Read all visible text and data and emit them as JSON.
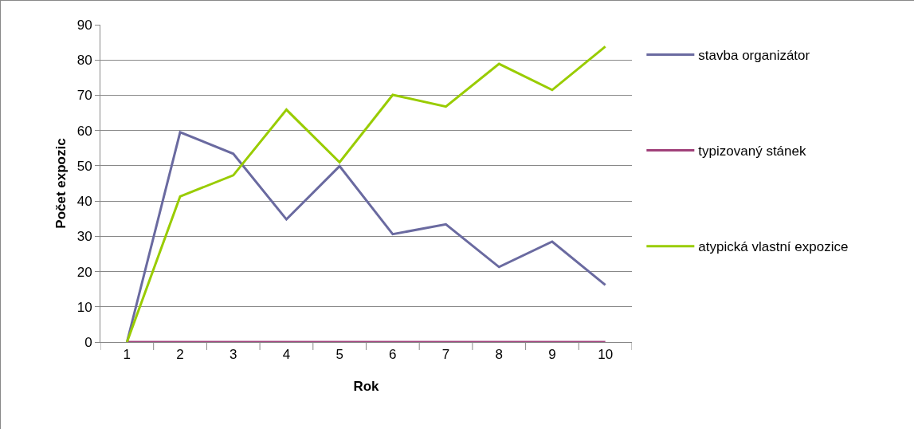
{
  "chart_data": {
    "type": "line",
    "xlabel": "Rok",
    "ylabel": "Počet expozic",
    "categories": [
      "1",
      "2",
      "3",
      "4",
      "5",
      "6",
      "7",
      "8",
      "9",
      "10"
    ],
    "series": [
      {
        "name": "stavba organizátor",
        "color": "#6a6aa0",
        "values": [
          0,
          59.5,
          53.4,
          34.8,
          49.9,
          30.6,
          33.4,
          21.3,
          28.5,
          16.2
        ]
      },
      {
        "name": "typizovaný stánek",
        "color": "#a0407a",
        "values": [
          0,
          0,
          0,
          0,
          0,
          0,
          0,
          0,
          0,
          0
        ]
      },
      {
        "name": "atypická vlastní expozice",
        "color": "#99cc00",
        "values": [
          0,
          41.3,
          47.3,
          65.9,
          51,
          70.1,
          66.8,
          78.9,
          71.5,
          83.8
        ]
      }
    ],
    "ylim": [
      0,
      90
    ],
    "yticks": [
      0,
      10,
      20,
      30,
      40,
      50,
      60,
      70,
      80,
      90
    ],
    "grid": "y",
    "legend": "right",
    "marker": "none",
    "line_style": "solid"
  }
}
